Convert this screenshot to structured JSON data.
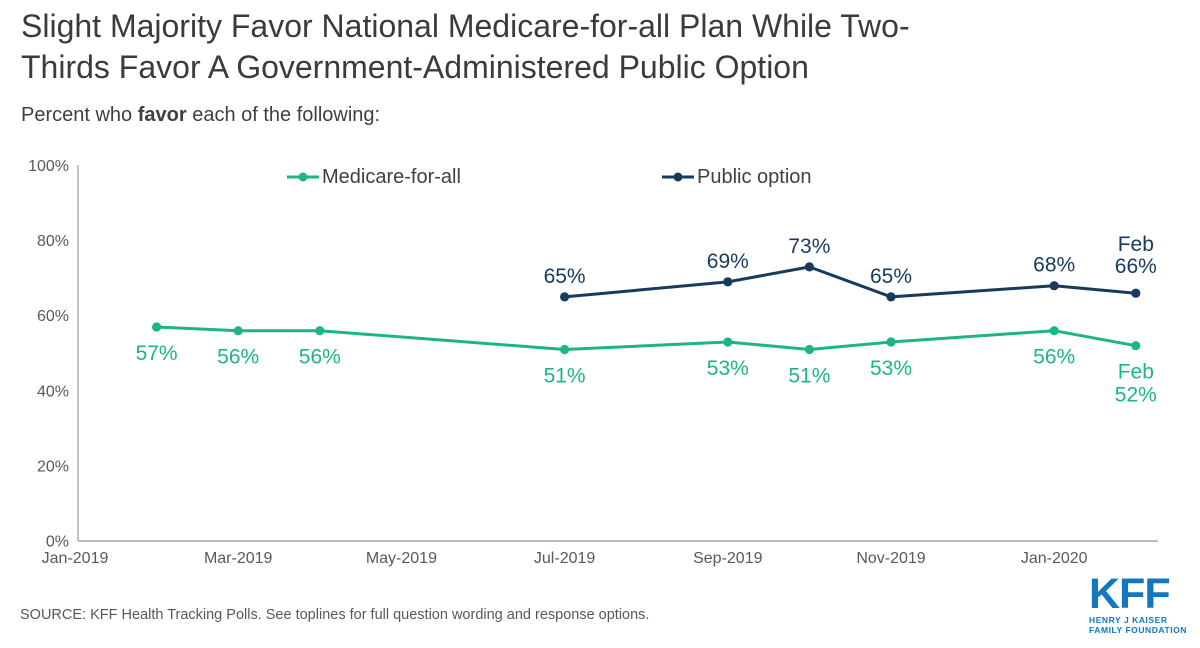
{
  "header": {
    "title_line1": "Slight Majority Favor National Medicare-for-all Plan While Two-",
    "title_line2": "Thirds Favor A Government-Administered Public Option",
    "subtitle_prefix": "Percent who ",
    "subtitle_bold": "favor",
    "subtitle_suffix": " each of the following:"
  },
  "chart_data": {
    "type": "line",
    "title": "Slight Majority Favor National Medicare-for-all Plan While Two-Thirds Favor A Government-Administered Public Option",
    "subtitle": "Percent who favor each of the following:",
    "xlabel": "",
    "ylabel": "",
    "ylim": [
      0,
      100
    ],
    "grid": false,
    "legend_position": "top",
    "axis_color": "#a8a8a8",
    "tick_color": "#595959",
    "y_tick_values": [
      0,
      20,
      40,
      60,
      80,
      100
    ],
    "y_tick_labels": [
      "0%",
      "20%",
      "40%",
      "60%",
      "80%",
      "100%"
    ],
    "x_tick_labels": [
      "Jan-2019",
      "Mar-2019",
      "May-2019",
      "Jul-2019",
      "Sep-2019",
      "Nov-2019",
      "Jan-2020"
    ],
    "x_tick_month_indices": [
      0,
      2,
      4,
      6,
      8,
      10,
      12
    ],
    "series": [
      {
        "name": "Medicare-for-all",
        "color": "#1db487",
        "label_side": "below",
        "points": [
          {
            "x_index": 1,
            "value": 57,
            "label": "57%"
          },
          {
            "x_index": 2,
            "value": 56,
            "label": "56%"
          },
          {
            "x_index": 3,
            "value": 56,
            "label": "56%"
          },
          {
            "x_index": 6,
            "value": 51,
            "label": "51%"
          },
          {
            "x_index": 8,
            "value": 53,
            "label": "53%"
          },
          {
            "x_index": 9,
            "value": 51,
            "label": "51%"
          },
          {
            "x_index": 10,
            "value": 53,
            "label": "53%"
          },
          {
            "x_index": 12,
            "value": 56,
            "label": "56%"
          },
          {
            "x_index": 13,
            "value": 52,
            "label_lines": [
              "Feb",
              "52%"
            ]
          }
        ]
      },
      {
        "name": "Public option",
        "color": "#183a5c",
        "label_side": "above",
        "points": [
          {
            "x_index": 6,
            "value": 65,
            "label": "65%"
          },
          {
            "x_index": 8,
            "value": 69,
            "label": "69%"
          },
          {
            "x_index": 9,
            "value": 73,
            "label": "73%"
          },
          {
            "x_index": 10,
            "value": 65,
            "label": "65%"
          },
          {
            "x_index": 12,
            "value": 68,
            "label": "68%"
          },
          {
            "x_index": 13,
            "value": 66,
            "label_lines": [
              "Feb",
              "66%"
            ]
          }
        ]
      }
    ]
  },
  "footer": {
    "source": "SOURCE: KFF Health Tracking Polls. See toplines for full question wording and response options.",
    "logo": {
      "acronym": "KFF",
      "line1": "HENRY J KAISER",
      "line2": "FAMILY FOUNDATION",
      "color": "#1277bd"
    }
  }
}
